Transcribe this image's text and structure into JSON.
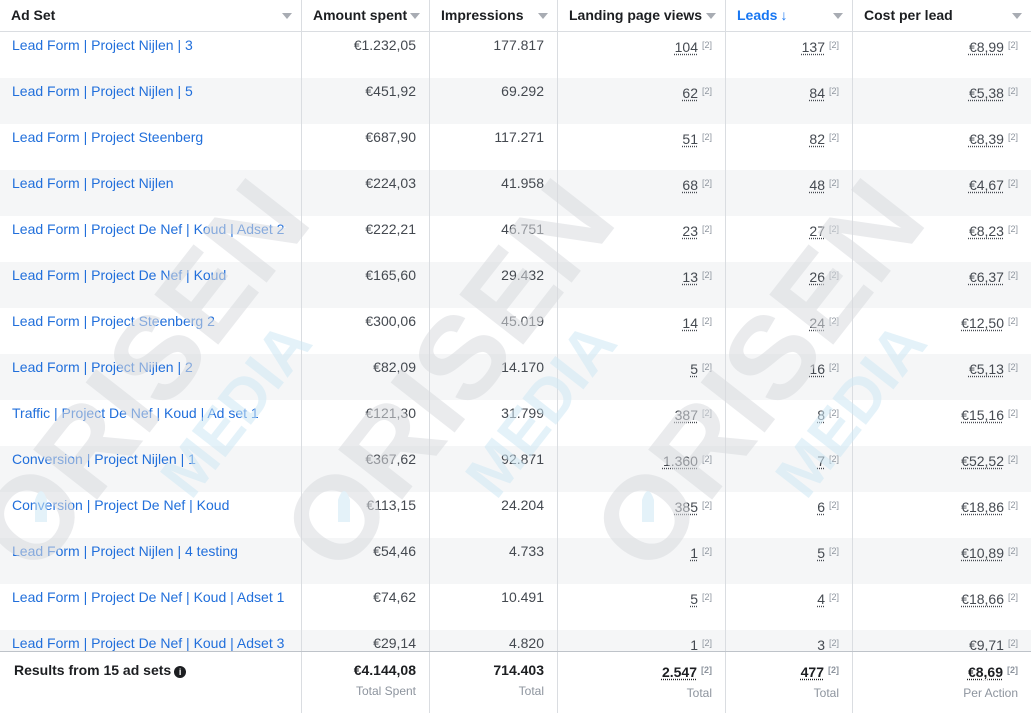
{
  "columns": [
    {
      "label": "Ad Set",
      "sort_arrow": ""
    },
    {
      "label": "Amount spent",
      "sort_arrow": ""
    },
    {
      "label": "Impressions",
      "sort_arrow": ""
    },
    {
      "label": "Landing page views",
      "sort_arrow": ""
    },
    {
      "label": "Leads",
      "sort_arrow": "↓"
    },
    {
      "label": "Cost per lead",
      "sort_arrow": ""
    }
  ],
  "footnote_marker": "[2]",
  "rows": [
    {
      "name": "Lead Form | Project Nijlen | 3",
      "spent": "€1.232,05",
      "impressions": "177.817",
      "lpv": "104",
      "leads": "137",
      "cpl": "€8,99"
    },
    {
      "name": "Lead Form | Project Nijlen | 5",
      "spent": "€451,92",
      "impressions": "69.292",
      "lpv": "62",
      "leads": "84",
      "cpl": "€5,38"
    },
    {
      "name": "Lead Form | Project Steenberg",
      "spent": "€687,90",
      "impressions": "117.271",
      "lpv": "51",
      "leads": "82",
      "cpl": "€8,39"
    },
    {
      "name": "Lead Form | Project Nijlen",
      "spent": "€224,03",
      "impressions": "41.958",
      "lpv": "68",
      "leads": "48",
      "cpl": "€4,67"
    },
    {
      "name": "Lead Form | Project De Nef | Koud | Adset 2",
      "spent": "€222,21",
      "impressions": "46.751",
      "lpv": "23",
      "leads": "27",
      "cpl": "€8,23"
    },
    {
      "name": "Lead Form | Project De Nef | Koud",
      "spent": "€165,60",
      "impressions": "29.432",
      "lpv": "13",
      "leads": "26",
      "cpl": "€6,37"
    },
    {
      "name": "Lead Form | Project Steenberg 2",
      "spent": "€300,06",
      "impressions": "45.019",
      "lpv": "14",
      "leads": "24",
      "cpl": "€12,50"
    },
    {
      "name": "Lead Form | Project Nijlen | 2",
      "spent": "€82,09",
      "impressions": "14.170",
      "lpv": "5",
      "leads": "16",
      "cpl": "€5,13"
    },
    {
      "name": "Traffic | Project De Nef | Koud | Ad set 1",
      "spent": "€121,30",
      "impressions": "31.799",
      "lpv": "387",
      "leads": "8",
      "cpl": "€15,16"
    },
    {
      "name": "Conversion | Project Nijlen | 1",
      "spent": "€367,62",
      "impressions": "92.871",
      "lpv": "1.360",
      "leads": "7",
      "cpl": "€52,52"
    },
    {
      "name": "Conversion | Project De Nef | Koud",
      "spent": "€113,15",
      "impressions": "24.204",
      "lpv": "385",
      "leads": "6",
      "cpl": "€18,86"
    },
    {
      "name": "Lead Form | Project Nijlen | 4 testing",
      "spent": "€54,46",
      "impressions": "4.733",
      "lpv": "1",
      "leads": "5",
      "cpl": "€10,89"
    },
    {
      "name": "Lead Form | Project De Nef | Koud | Adset 1",
      "spent": "€74,62",
      "impressions": "10.491",
      "lpv": "5",
      "leads": "4",
      "cpl": "€18,66"
    },
    {
      "name": "Lead Form | Project De Nef | Koud | Adset 3",
      "spent": "€29,14",
      "impressions": "4.820",
      "lpv": "1",
      "leads": "3",
      "cpl": "€9,71"
    }
  ],
  "footer": {
    "label": "Results from 15 ad sets",
    "info_icon": "info-icon",
    "spent": "€4.144,08",
    "spent_sub": "Total Spent",
    "impressions": "714.403",
    "impressions_sub": "Total",
    "lpv": "2.547",
    "lpv_sub": "Total",
    "leads": "477",
    "leads_sub": "Total",
    "cpl": "€8,69",
    "cpl_sub": "Per Action"
  },
  "watermark": {
    "word1": "ORISEN",
    "word2": "MEDIA",
    "icon": "rocket-icon"
  },
  "colors": {
    "link": "#216fdb",
    "active_header": "#1877f2",
    "row_alt": "#f5f6f7",
    "border": "#dadde1",
    "watermark": "#e6e7e9",
    "watermark_accent": "#d5ecf7"
  }
}
